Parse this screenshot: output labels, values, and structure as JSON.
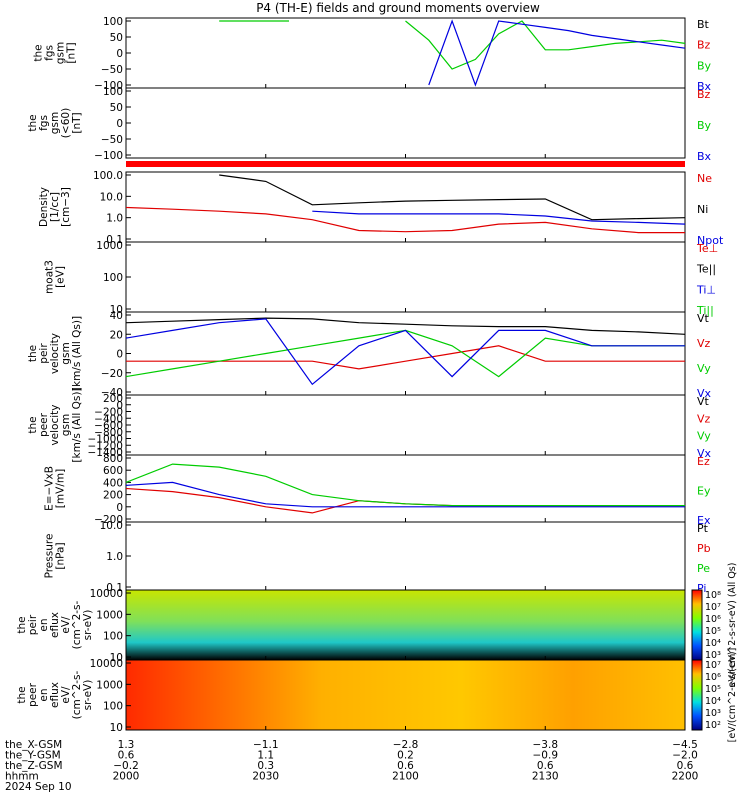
{
  "title": "P4 (TH-E) fields and ground moments overview",
  "colors": {
    "black": "#000000",
    "red": "#e00000",
    "green": "#00cc00",
    "blue": "#0000e0",
    "bar": "#ff0000"
  },
  "panels": [
    {
      "id": "fgs-gsm",
      "ylabel": [
        "the",
        "fgs",
        "gsm",
        "[nT]"
      ],
      "yticks": [
        "100",
        "50",
        "0",
        "−50",
        "−100"
      ],
      "legend": [
        {
          "text": "Bt",
          "color": "black"
        },
        {
          "text": "Bz",
          "color": "red"
        },
        {
          "text": "By",
          "color": "green"
        },
        {
          "text": "Bx",
          "color": "blue"
        }
      ]
    },
    {
      "id": "fgs-gsm-zoom",
      "ylabel": [
        "the",
        "fgs",
        "gsm",
        "(<60)",
        "[nT]"
      ],
      "yticks": [
        "100",
        "50",
        "0",
        "−50",
        "−100"
      ],
      "legend": [
        {
          "text": "Bz",
          "color": "red"
        },
        {
          "text": "By",
          "color": "green"
        },
        {
          "text": "Bx",
          "color": "blue"
        }
      ]
    },
    {
      "id": "density",
      "ylabel": [
        "Density",
        "[1/cc]",
        "[cm−3]"
      ],
      "yticks": [
        "100.0",
        "10.0",
        "1.0",
        "0.1"
      ],
      "legend": [
        {
          "text": "Ne",
          "color": "red"
        },
        {
          "text": "Ni",
          "color": "black"
        },
        {
          "text": "Npot",
          "color": "blue"
        }
      ]
    },
    {
      "id": "temperature",
      "ylabel": [
        "moat3",
        "[eV]"
      ],
      "yticks": [
        "1000",
        "100",
        "10"
      ],
      "legend": [
        {
          "text": "Te⊥",
          "color": "red"
        },
        {
          "text": "Te||",
          "color": "black"
        },
        {
          "text": "Ti⊥",
          "color": "blue"
        },
        {
          "text": "Ti||",
          "color": "green"
        }
      ]
    },
    {
      "id": "peir-velocity",
      "ylabel": [
        "the",
        "peir",
        "velocity",
        "gsm",
        "[km/s (All Qs)]"
      ],
      "yticks": [
        "40",
        "20",
        "0",
        "−20",
        "−40"
      ],
      "legend": [
        {
          "text": "Vt",
          "color": "black"
        },
        {
          "text": "Vz",
          "color": "red"
        },
        {
          "text": "Vy",
          "color": "green"
        },
        {
          "text": "Vx",
          "color": "blue"
        }
      ]
    },
    {
      "id": "peer-velocity",
      "ylabel": [
        "the",
        "peer",
        "velocity",
        "gsm",
        "[km/s (All Qs)]"
      ],
      "yticks": [
        "200",
        "0",
        "−200",
        "−400",
        "−600",
        "−800",
        "−1000",
        "−1200",
        "−1400"
      ],
      "legend": [
        {
          "text": "Vt",
          "color": "black"
        },
        {
          "text": "Vz",
          "color": "red"
        },
        {
          "text": "Vy",
          "color": "green"
        },
        {
          "text": "Vx",
          "color": "blue"
        }
      ]
    },
    {
      "id": "efield",
      "ylabel": [
        "E=−VxB",
        "[mV/m]"
      ],
      "yticks": [
        "800",
        "600",
        "400",
        "200",
        "0",
        "−200"
      ],
      "legend": [
        {
          "text": "Ez",
          "color": "red"
        },
        {
          "text": "Ey",
          "color": "green"
        },
        {
          "text": "Ex",
          "color": "blue"
        }
      ]
    },
    {
      "id": "pressure",
      "ylabel": [
        "Pressure",
        "[nPa]"
      ],
      "yticks": [
        "10.0",
        "1.0",
        "0.1"
      ],
      "legend": [
        {
          "text": "Pt",
          "color": "black"
        },
        {
          "text": "Pb",
          "color": "red"
        },
        {
          "text": "Pe",
          "color": "green"
        },
        {
          "text": "Pi",
          "color": "blue"
        }
      ]
    },
    {
      "id": "peir-eflux",
      "ylabel": [
        "the",
        "peir",
        "en",
        "eflux",
        "eV/",
        "(cm^2-s-",
        "sr-eV)"
      ],
      "yticks": [
        "10000",
        "1000",
        "100",
        "10"
      ],
      "cbar_ticks": [
        "10⁸",
        "10⁷",
        "10⁶",
        "10⁵",
        "10⁴",
        "10³"
      ],
      "cbar_label": "eV/(cm^2-s-sr-eV) (All Qs)"
    },
    {
      "id": "peer-eflux",
      "ylabel": [
        "the",
        "peer",
        "en",
        "eflux",
        "eV/",
        "(cm^2-s-",
        "sr-eV)"
      ],
      "yticks": [
        "10000",
        "1000",
        "100",
        "10"
      ],
      "cbar_ticks": [
        "10⁷",
        "10⁶",
        "10⁵",
        "10⁴",
        "10³",
        "10²"
      ],
      "cbar_label": "[eV/(cm^2-s-sr-eV)]"
    }
  ],
  "axis": {
    "row_labels": [
      "the_X-GSM",
      "the_Y-GSM",
      "the_Z-GSM",
      "hhmm",
      "2024 Sep 10"
    ],
    "columns": [
      {
        "x": "1.3",
        "y": "0.6",
        "z": "−0.2",
        "t": "2000"
      },
      {
        "x": "−1.1",
        "y": "1.1",
        "z": "0.3",
        "t": "2030"
      },
      {
        "x": "−2.8",
        "y": "0.2",
        "z": "0.6",
        "t": "2100"
      },
      {
        "x": "−3.8",
        "y": "−0.9",
        "z": "0.6",
        "t": "2130"
      },
      {
        "x": "−4.5",
        "y": "−2.0",
        "z": "0.6",
        "t": "2200"
      }
    ]
  },
  "chart_data": [
    {
      "type": "line",
      "panel": "fgs-gsm",
      "x": [
        2000,
        2005,
        2010,
        2015,
        2020,
        2025,
        2030,
        2035,
        2040,
        2045,
        2050,
        2055,
        2100,
        2105,
        2110,
        2115,
        2120,
        2125,
        2130,
        2135,
        2140,
        2145,
        2150,
        2155,
        2200
      ],
      "ylim": [
        -100,
        100
      ],
      "series": [
        {
          "name": "Bt",
          "values": [
            null,
            null,
            null,
            null,
            null,
            null,
            null,
            null,
            null,
            null,
            null,
            null,
            null,
            null,
            null,
            null,
            null,
            null,
            null,
            null,
            null,
            null,
            null,
            null,
            null
          ]
        },
        {
          "name": "By",
          "values": [
            null,
            null,
            null,
            null,
            100,
            100,
            100,
            100,
            null,
            null,
            null,
            null,
            100,
            40,
            -50,
            -20,
            60,
            100,
            10,
            10,
            20,
            30,
            35,
            40,
            30
          ]
        },
        {
          "name": "Bx",
          "values": [
            null,
            null,
            null,
            null,
            null,
            null,
            null,
            null,
            null,
            null,
            null,
            null,
            null,
            -100,
            100,
            -100,
            100,
            90,
            80,
            70,
            55,
            45,
            35,
            25,
            15
          ]
        }
      ]
    },
    {
      "type": "line",
      "panel": "density",
      "ylim": [
        0.1,
        100
      ],
      "log": true,
      "x": [
        2000,
        2010,
        2020,
        2030,
        2040,
        2050,
        2100,
        2110,
        2120,
        2130,
        2140,
        2150,
        2200
      ],
      "series": [
        {
          "name": "Ne",
          "values": [
            3.0,
            2.5,
            2.0,
            1.5,
            0.8,
            0.25,
            0.22,
            0.25,
            0.5,
            0.6,
            0.3,
            0.2,
            0.2
          ]
        },
        {
          "name": "Ni",
          "values": [
            null,
            null,
            100,
            50,
            4.0,
            5.0,
            6.0,
            6.5,
            7.0,
            7.5,
            0.8,
            0.9,
            1.0
          ]
        },
        {
          "name": "Npot",
          "values": [
            null,
            null,
            null,
            null,
            2.0,
            1.5,
            1.5,
            1.5,
            1.5,
            1.2,
            0.7,
            0.6,
            0.5
          ]
        }
      ]
    },
    {
      "type": "line",
      "panel": "peir-velocity",
      "ylim": [
        -50,
        50
      ],
      "x": [
        2000,
        2010,
        2020,
        2030,
        2040,
        2050,
        2100,
        2110,
        2120,
        2130,
        2140,
        2150,
        2200
      ],
      "series": [
        {
          "name": "Vt",
          "values": [
            40,
            42,
            44,
            46,
            45,
            40,
            38,
            36,
            35,
            35,
            30,
            28,
            25
          ]
        },
        {
          "name": "Vz",
          "values": [
            -10,
            -10,
            -10,
            -10,
            -10,
            -20,
            -10,
            0,
            10,
            -10,
            -10,
            -10,
            -10
          ]
        },
        {
          "name": "Vy",
          "values": [
            -30,
            -20,
            -10,
            0,
            10,
            20,
            30,
            10,
            -30,
            20,
            10,
            10,
            10
          ]
        },
        {
          "name": "Vx",
          "values": [
            20,
            30,
            40,
            45,
            -40,
            10,
            30,
            -30,
            30,
            30,
            10,
            10,
            10
          ]
        }
      ]
    },
    {
      "type": "line",
      "panel": "efield",
      "ylim": [
        -200,
        800
      ],
      "x": [
        2000,
        2010,
        2020,
        2030,
        2040,
        2050,
        2100,
        2110,
        2120,
        2130,
        2140,
        2150,
        2200
      ],
      "series": [
        {
          "name": "Ez",
          "values": [
            300,
            250,
            150,
            0,
            -100,
            100,
            50,
            20,
            20,
            20,
            20,
            20,
            20
          ]
        },
        {
          "name": "Ey",
          "values": [
            400,
            700,
            650,
            500,
            200,
            100,
            50,
            20,
            20,
            20,
            20,
            20,
            20
          ]
        },
        {
          "name": "Ex",
          "values": [
            350,
            400,
            200,
            50,
            0,
            0,
            0,
            0,
            0,
            0,
            0,
            0,
            0
          ]
        }
      ]
    }
  ]
}
